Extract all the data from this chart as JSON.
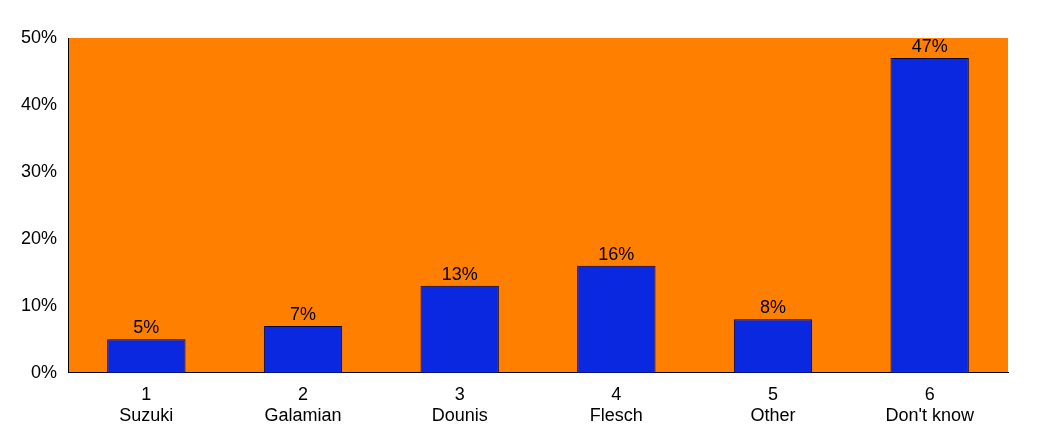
{
  "chart_data": {
    "type": "bar",
    "categories": [
      "1\nSuzuki",
      "2\nGalamian",
      "3\nDounis",
      "4\nFlesch",
      "5\nOther",
      "6\nDon't know"
    ],
    "values": [
      5,
      7,
      13,
      16,
      8,
      47
    ],
    "color": "#0a28e0",
    "value_labels": [
      "5%",
      "7%",
      "13%",
      "16%",
      "8%",
      "47%"
    ],
    "ylim": [
      0,
      50
    ],
    "yticks": [
      {
        "value": 0,
        "label": "0%"
      },
      {
        "value": 10,
        "label": "10%"
      },
      {
        "value": 20,
        "label": "20%"
      },
      {
        "value": 30,
        "label": "30%"
      },
      {
        "value": 40,
        "label": "40%"
      },
      {
        "value": 50,
        "label": "50%"
      }
    ],
    "grid": false,
    "legend": false
  }
}
